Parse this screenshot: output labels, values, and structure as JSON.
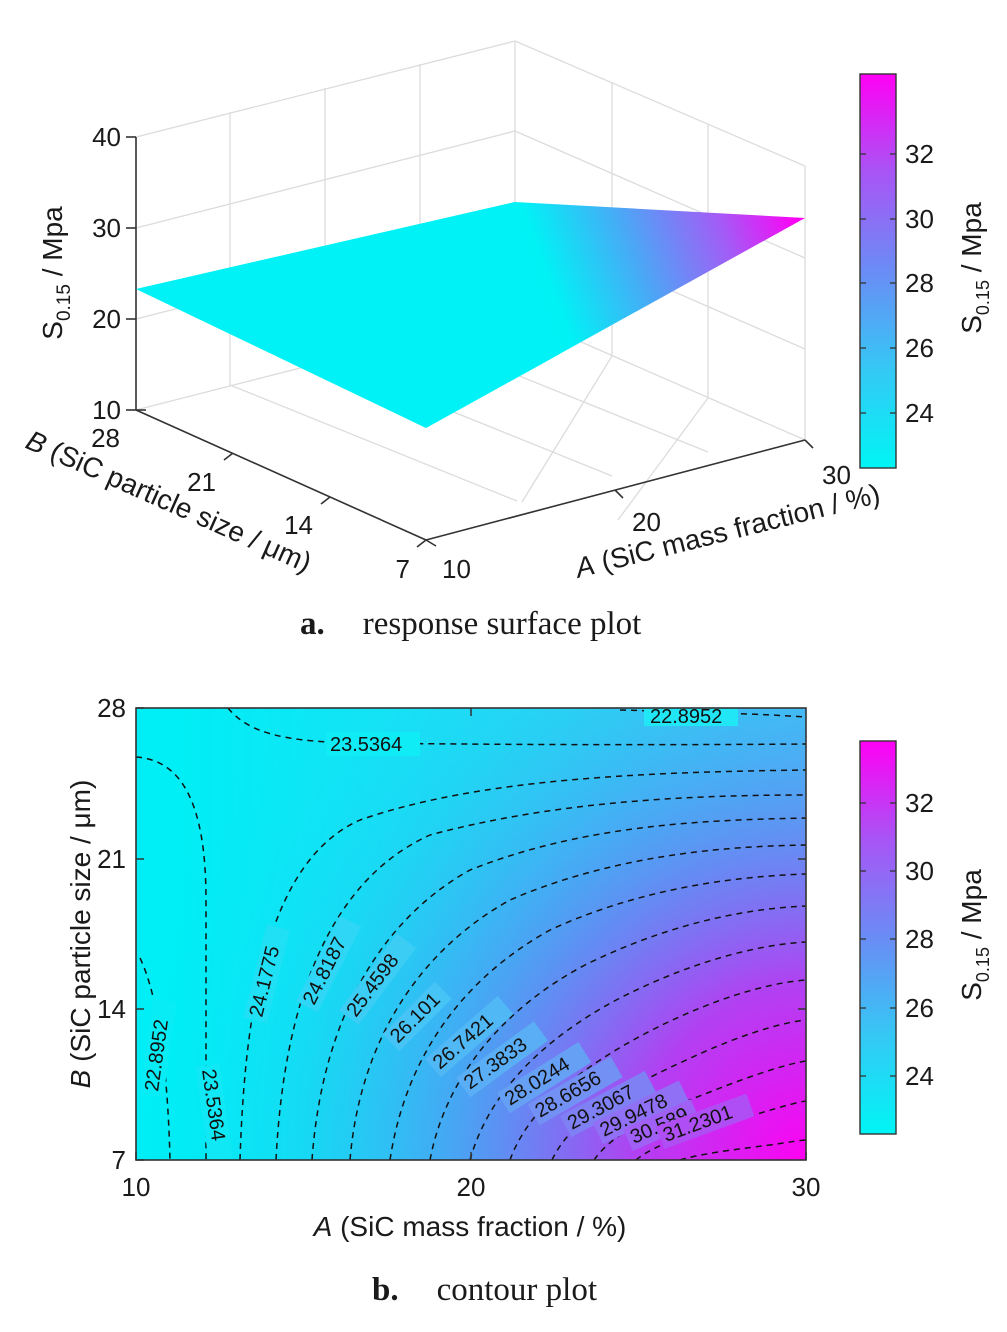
{
  "chart_data": [
    {
      "type": "surface",
      "caption_letter": "a.",
      "caption_text": "response surface plot",
      "xlabel": "A (SiC mass fraction / %)",
      "ylabel": "B (SiC particle size / μm)",
      "zlabel": "S0.15 / Mpa",
      "x_ticks": [
        "10",
        "20",
        "30"
      ],
      "y_ticks": [
        "7",
        "14",
        "21",
        "28"
      ],
      "z_ticks": [
        "10",
        "20",
        "30",
        "40"
      ],
      "xlim": [
        10,
        30
      ],
      "ylim": [
        7,
        28
      ],
      "zlim": [
        10,
        40
      ],
      "corners": [
        {
          "A": 10,
          "B": 7,
          "S": 23.0
        },
        {
          "A": 30,
          "B": 7,
          "S": 34.2
        },
        {
          "A": 10,
          "B": 28,
          "S": 23.5
        },
        {
          "A": 30,
          "B": 28,
          "S": 22.8
        }
      ],
      "colorbar": {
        "label": "S0.15 / Mpa",
        "ticks": [
          "24",
          "26",
          "28",
          "30",
          "32"
        ],
        "range": [
          22.3,
          34.3
        ]
      }
    },
    {
      "type": "contour",
      "caption_letter": "b.",
      "caption_text": "contour plot",
      "xlabel": "A (SiC mass fraction / %)",
      "ylabel": "B (SiC particle size / μm)",
      "x_ticks": [
        "10",
        "20",
        "30"
      ],
      "y_ticks": [
        "7",
        "14",
        "21",
        "28"
      ],
      "xlim": [
        10,
        30
      ],
      "ylim": [
        7,
        28
      ],
      "contour_levels": [
        "22.8952",
        "23.5364",
        "24.1775",
        "24.8187",
        "25.4598",
        "26.101",
        "26.7421",
        "27.3833",
        "28.0244",
        "28.6656",
        "29.3067",
        "29.9478",
        "30.589",
        "31.2301"
      ],
      "colorbar": {
        "label": "S0.15 / Mpa",
        "ticks": [
          "24",
          "26",
          "28",
          "30",
          "32"
        ],
        "range": [
          22.3,
          33.6
        ]
      }
    }
  ]
}
